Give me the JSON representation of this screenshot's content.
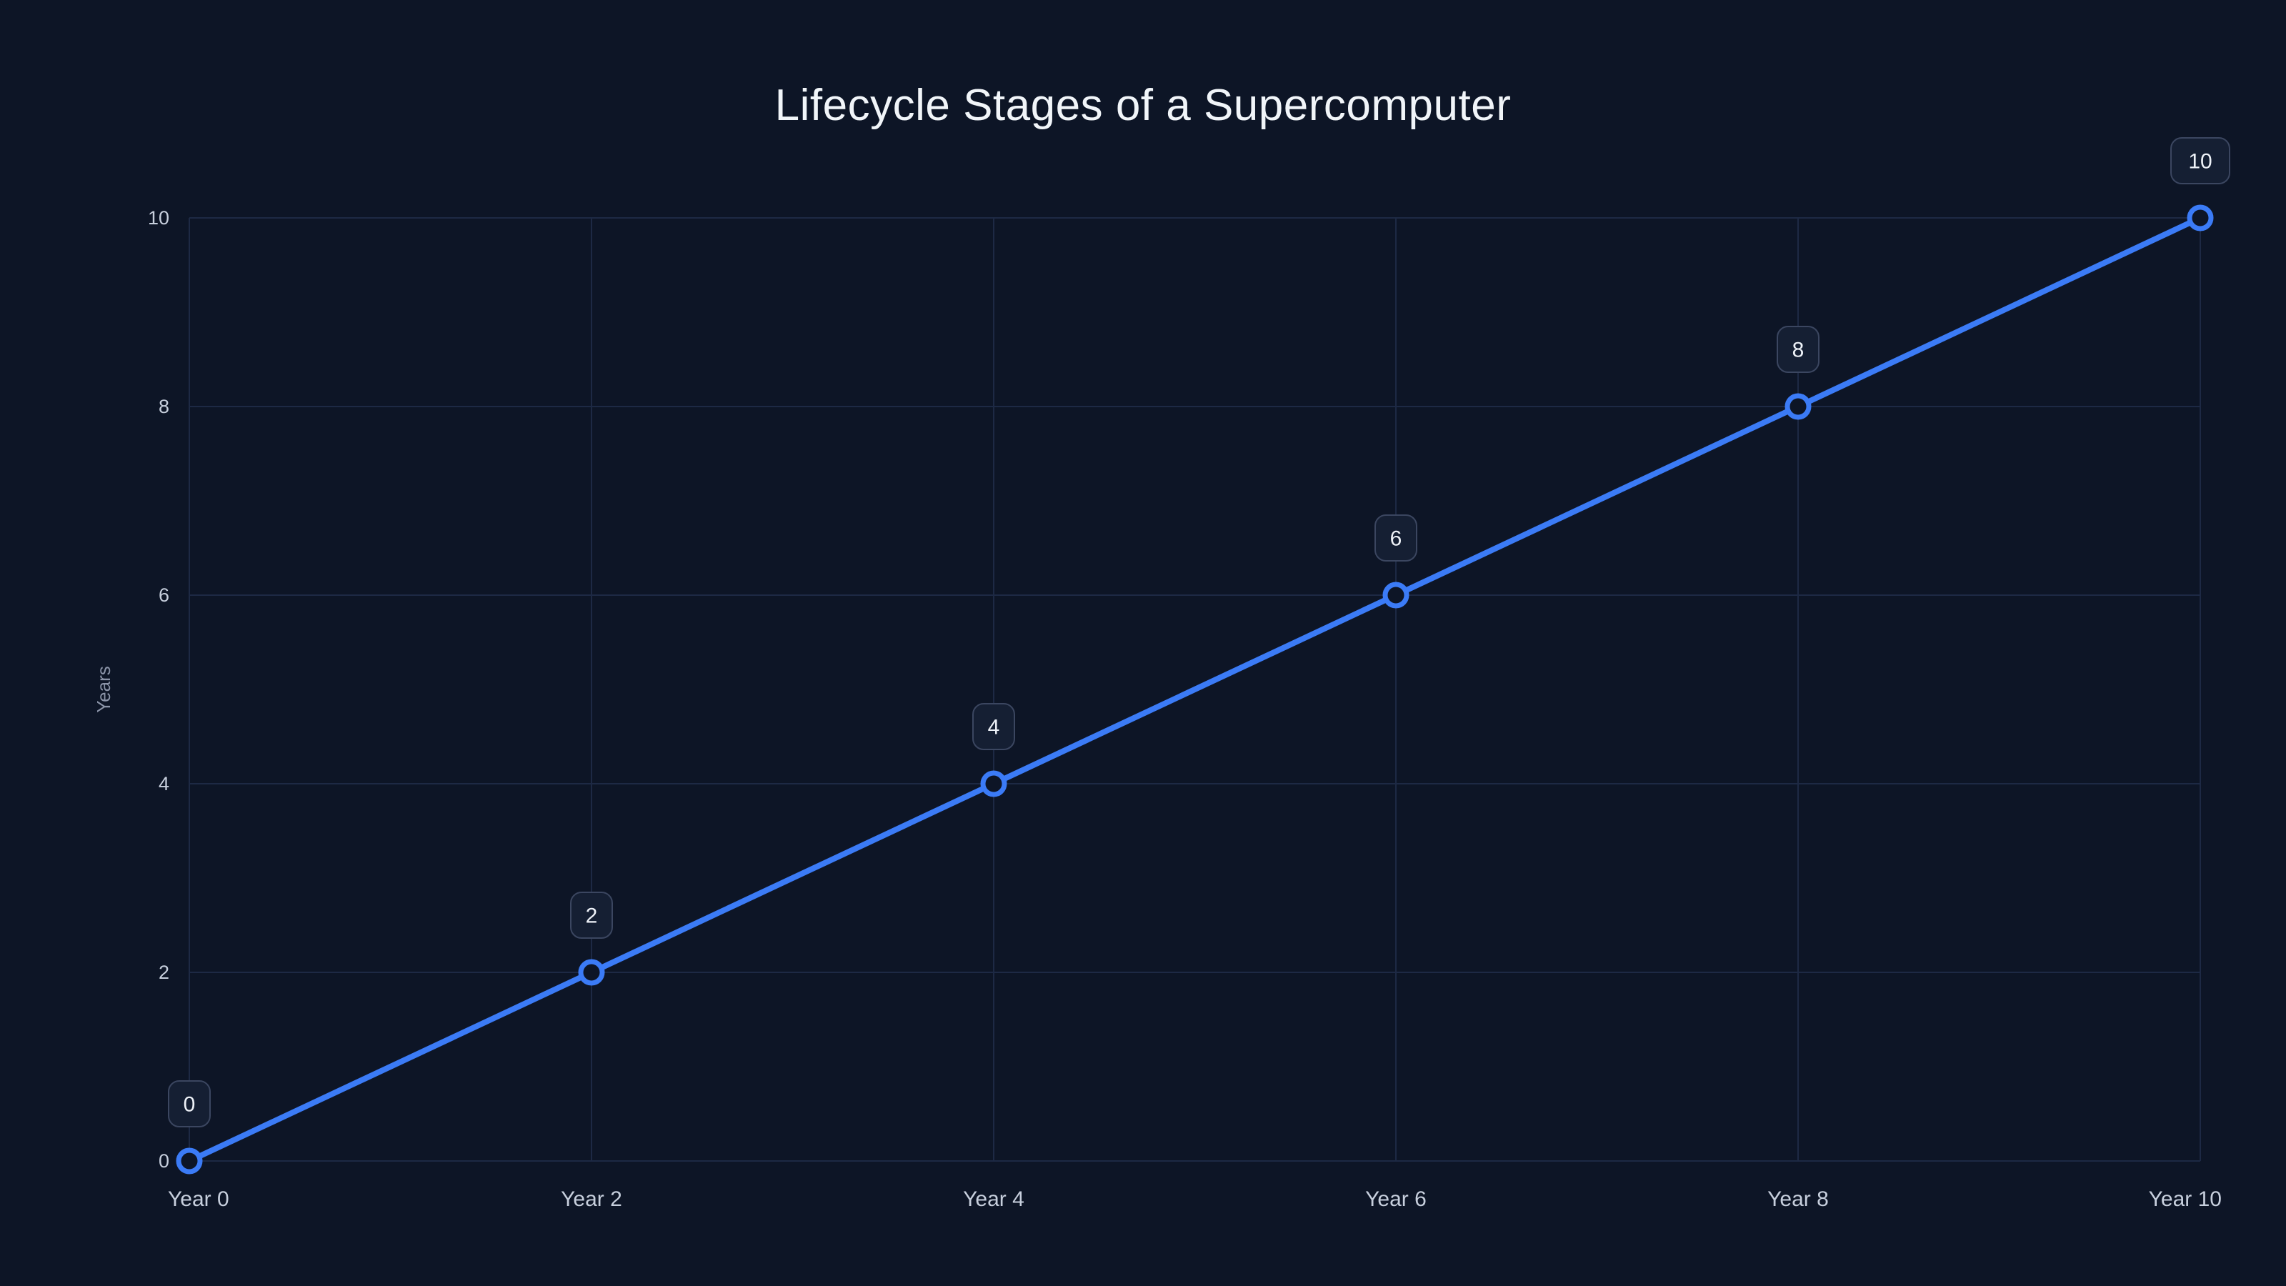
{
  "chart_data": {
    "type": "line",
    "title": "Lifecycle Stages of a Supercomputer",
    "xlabel": "",
    "ylabel": "Years",
    "categories": [
      "Year 0",
      "Year 2",
      "Year 4",
      "Year 6",
      "Year 8",
      "Year 10"
    ],
    "series": [
      {
        "name": "Years",
        "values": [
          0,
          2,
          4,
          6,
          8,
          10
        ],
        "point_labels": [
          "0",
          "2",
          "4",
          "6",
          "8",
          "10"
        ]
      }
    ],
    "ylim": [
      0,
      10
    ],
    "yticks": [
      0,
      2,
      4,
      6,
      8,
      10
    ],
    "grid": "on",
    "legend": "none"
  },
  "colors": {
    "background": "#0d1526",
    "accent_line": "#3b7bf6",
    "marker_fill": "#0d1526",
    "grid": "#1d2944",
    "title_text": "#f1f5f9",
    "tick_text": "#c7cfdd",
    "axis_label_text": "#8b94a8",
    "badge_bg": "#151f33",
    "badge_border": "#3b4660",
    "badge_text": "#eef2f8"
  }
}
